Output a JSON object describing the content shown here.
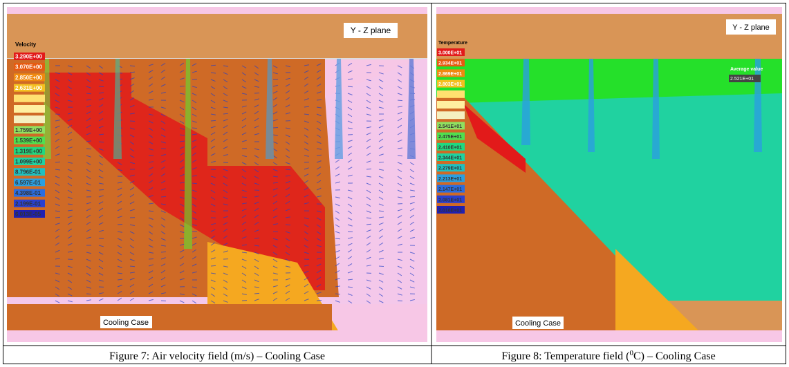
{
  "figures": [
    {
      "legend_title": "Velocity",
      "legend_values": [
        "3.290E+00",
        "3.070E+00",
        "2.850E+00",
        "2.631E+00",
        null,
        null,
        null,
        "1.759E+00",
        "1.539E+00",
        "1.319E+00",
        "1.099E+00",
        "8.796E-01",
        "6.597E-01",
        "4.398E-01",
        "2.199E-01",
        "6.013E-05"
      ],
      "plane_label": "Y - Z plane",
      "case_label": "Cooling Case",
      "caption": "Figure 7: Air velocity field (m/s) – Cooling Case"
    },
    {
      "legend_title": "Temperature",
      "legend_values": [
        "3.000E+01",
        "2.934E+01",
        "2.869E+01",
        "2.803E+01",
        null,
        null,
        null,
        "2.541E+01",
        "2.475E+01",
        "2.410E+01",
        "2.344E+01",
        "2.279E+01",
        "2.213E+01",
        "2.147E+01",
        "2.081E+01",
        "2.016E+01"
      ],
      "plane_label": "Y - Z plane",
      "average_label": "Average value",
      "average_value": "2.521E+01",
      "case_label": "Cooling Case",
      "caption_parts": [
        "Figure 8: Temperature field (",
        "0",
        "C) – Cooling Case"
      ]
    }
  ]
}
